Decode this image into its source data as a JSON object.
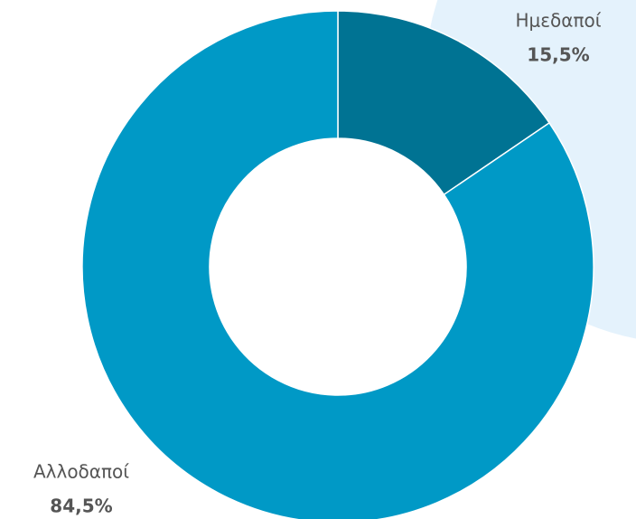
{
  "chart_data": {
    "type": "donut",
    "categories": [
      "Ημεδαποί",
      "Αλλοδαποί"
    ],
    "values": [
      15.5,
      84.5
    ],
    "value_labels": [
      "15,5%",
      "84,5%"
    ],
    "colors": [
      "#007393",
      "#0099c6"
    ]
  }
}
